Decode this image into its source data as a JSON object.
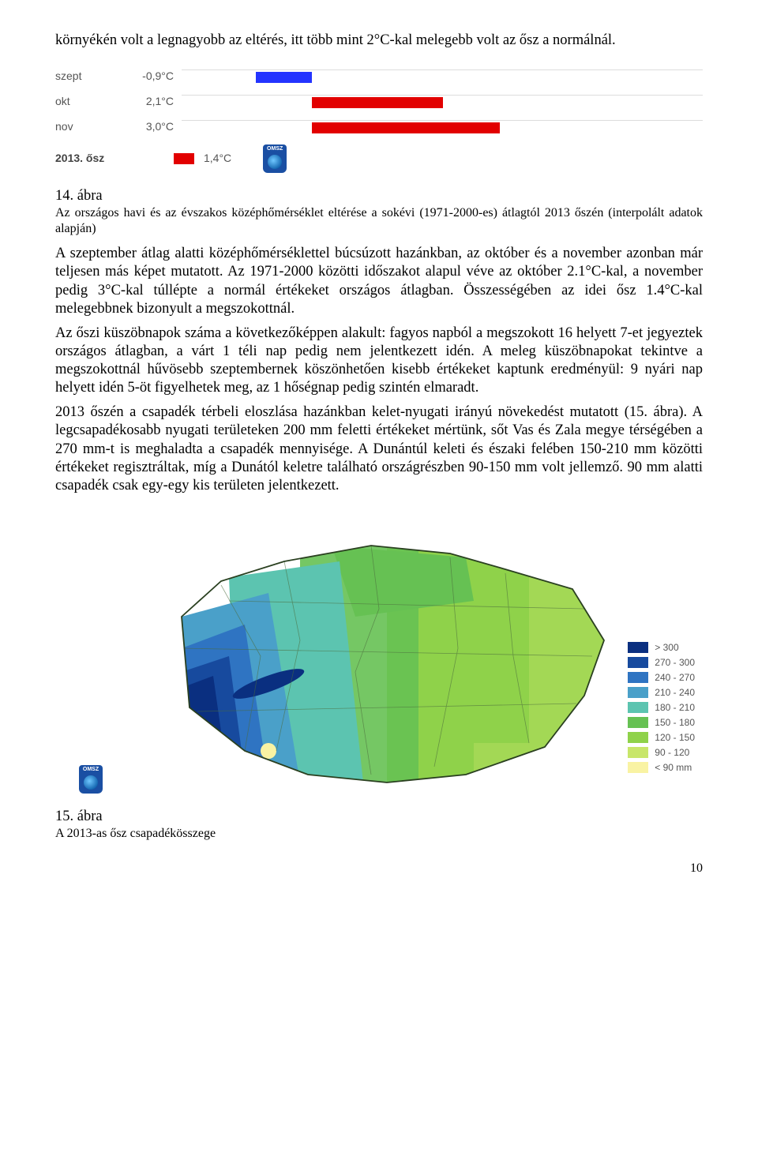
{
  "text": {
    "p1": "környékén volt a legnagyobb az eltérés, itt több mint 2°C-kal melegebb volt az ősz a normálnál.",
    "fig14_label": "14. ábra",
    "fig14_caption": "Az országos havi és az évszakos középhőmérséklet eltérése a sokévi (1971-2000-es) átlagtól 2013 őszén (interpolált adatok alapján)",
    "p2a": "A szeptember átlag alatti középhőmérséklettel búcsúzott hazánkban, az október és a november azonban már teljesen más képet mutatott. Az 1971-2000 közötti időszakot alapul véve az október 2.1°C-kal, a november pedig 3°C-kal túllépte a normál értékeket országos átlagban. Összességében az idei ősz 1.4°C-kal melegebbnek bizonyult a megszokottnál.",
    "p2b": "Az őszi küszöbnapok száma a következőképpen alakult: fagyos napból a megszokott 16 helyett 7-et jegyeztek országos átlagban, a várt 1 téli nap pedig nem jelentkezett idén. A meleg küszöbnapokat tekintve a megszokottnál hűvösebb szeptembernek köszönhetően kisebb értékeket kaptunk eredményül: 9 nyári nap helyett idén 5-öt figyelhetek meg, az 1 hőségnap pedig szintén elmaradt.",
    "p2c": "2013 őszén a csapadék térbeli eloszlása hazánkban kelet-nyugati irányú növekedést mutatott (15. ábra). A legcsapadékosabb nyugati területeken 200 mm feletti értékeket mértünk, sőt Vas és Zala megye térségében a 270 mm-t is meghaladta a csapadék mennyisége. A Dunántúl keleti és északi felében 150-210 mm közötti értékeket regisztráltak, míg a Dunától keletre található országrészben 90-150 mm volt jellemző. 90 mm alatti csapadék csak egy-egy kis területen jelentkezett.",
    "fig15_label": "15. ábra",
    "fig15_caption": "A 2013-as ősz csapadékösszege",
    "page_number": "10"
  },
  "chart1": {
    "type": "bar",
    "zero_pct": 25,
    "scale_pct_per_deg": 12,
    "rows": [
      {
        "label": "szept",
        "value_text": "-0,9°C",
        "value": -0.9,
        "color": "#2434ff"
      },
      {
        "label": "okt",
        "value_text": "2,1°C",
        "value": 2.1,
        "color": "#e20000"
      },
      {
        "label": "nov",
        "value_text": "3,0°C",
        "value": 3.0,
        "color": "#e20000"
      }
    ],
    "season_label": "2013. ősz",
    "season_value_text": "1,4°C",
    "swatch_color": "#e20000",
    "badge_bg": "#1a4fa3",
    "badge_text": "OMSZ"
  },
  "map": {
    "legend": [
      {
        "label": "> 300",
        "color": "#0a2f80"
      },
      {
        "label": "270 - 300",
        "color": "#174a9e"
      },
      {
        "label": "240 - 270",
        "color": "#2f74c2"
      },
      {
        "label": "210 - 240",
        "color": "#4aa0c9"
      },
      {
        "label": "180 - 210",
        "color": "#5cc4b0"
      },
      {
        "label": "150 - 180",
        "color": "#66c153"
      },
      {
        "label": "120 - 150",
        "color": "#8fd24a"
      },
      {
        "label": "90 - 120",
        "color": "#c8e66a"
      },
      {
        "label": "< 90 mm",
        "color": "#f9f3a3"
      }
    ],
    "badge_bg": "#1a4fa3",
    "badge_text": "OMSZ"
  }
}
